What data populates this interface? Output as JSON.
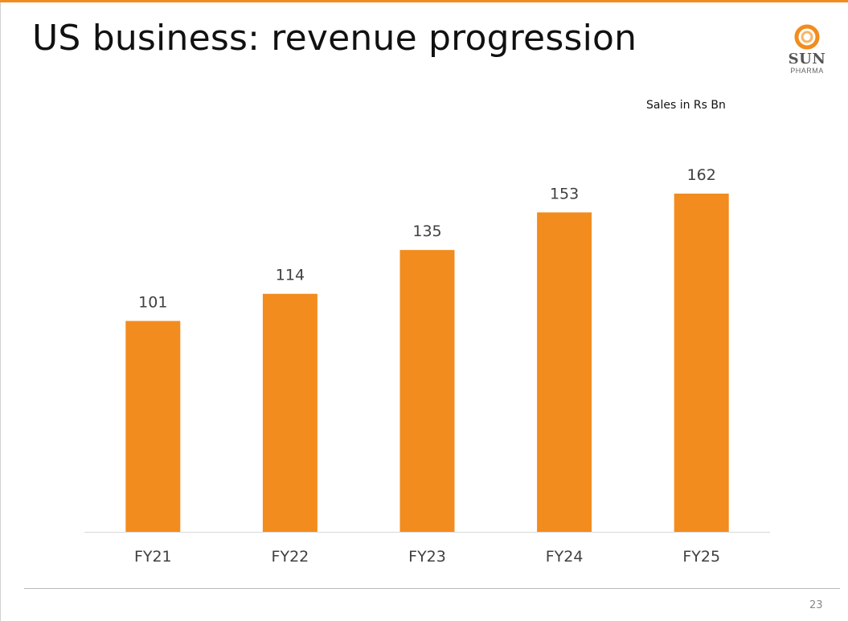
{
  "slide": {
    "title": "US business: revenue progression",
    "units_note": "Sales in Rs Bn",
    "page_number": "23"
  },
  "logo": {
    "name": "SUN",
    "sub": "PHARMA"
  },
  "colors": {
    "accent": "#F28C1E",
    "bar": "#F28C1E",
    "axis": "#d9d9d9",
    "label_text": "#404040"
  },
  "chart_data": {
    "type": "bar",
    "title": "",
    "xlabel": "",
    "ylabel": "",
    "categories": [
      "FY21",
      "FY22",
      "FY23",
      "FY24",
      "FY25"
    ],
    "values": [
      101,
      114,
      135,
      153,
      162
    ],
    "ylim": [
      0,
      162
    ],
    "grid": false,
    "legend": "none",
    "data_labels": true
  }
}
